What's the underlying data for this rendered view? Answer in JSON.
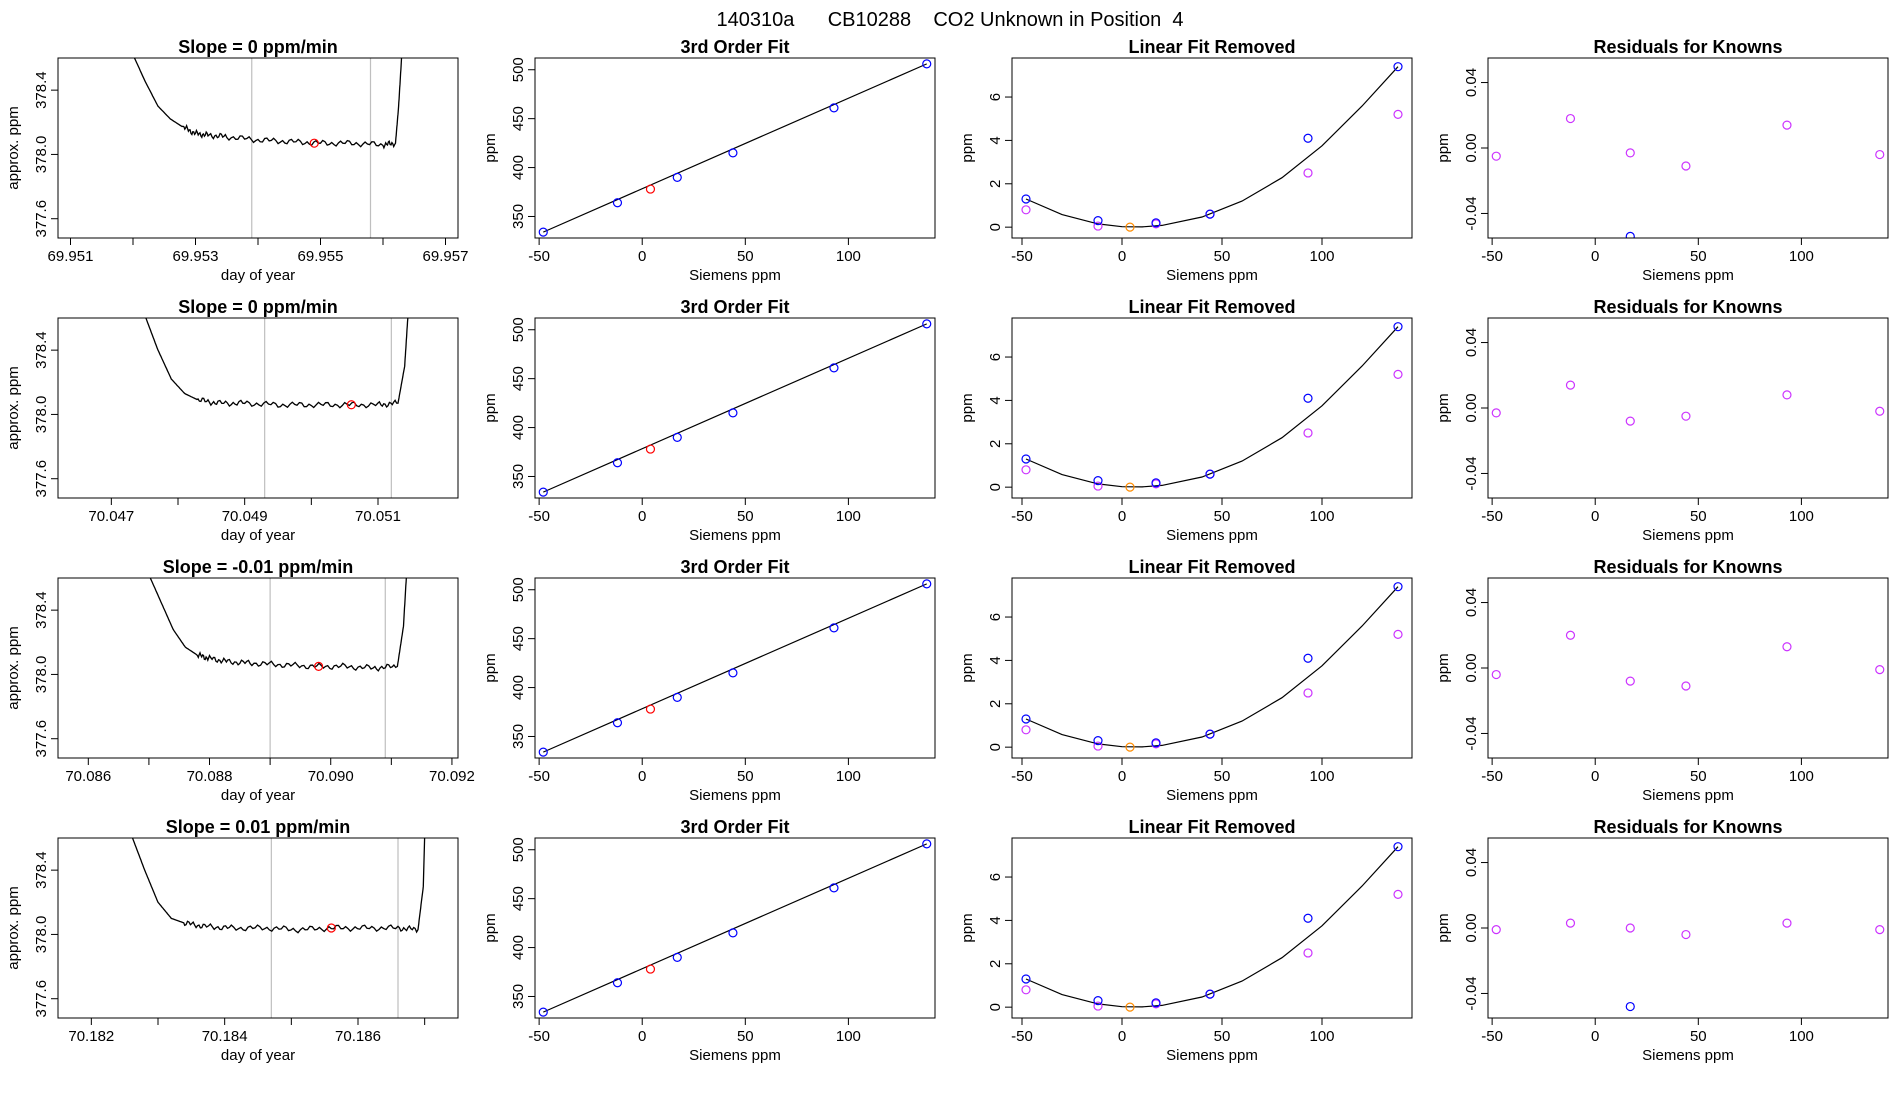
{
  "title": "140310a      CB10288    CO2 Unknown in Position  4",
  "colors": {
    "trace": "#000000",
    "unknown_point": "#ff0000",
    "known_point": "#0000ff",
    "raw_point": "#cc33ff",
    "zero_point": "#ff8c00",
    "window_line": "#bfbfbf",
    "fit_line": "#000000"
  },
  "chart_data": [
    {
      "type": "line",
      "panel": "trace",
      "row": 0,
      "title": "Slope =  0  ppm/min",
      "xlabel": "day of year",
      "ylabel": "approx. ppm",
      "xlim": [
        69.9508,
        69.9572
      ],
      "ylim": [
        377.48,
        378.6
      ],
      "xticks": [
        "69.951",
        "69.953",
        "69.955",
        "69.957"
      ],
      "xtick_minor": [
        69.951,
        69.952,
        69.953,
        69.954,
        69.955,
        69.956,
        69.957
      ],
      "yticks": [
        "377.6",
        "378.0",
        "378.4"
      ],
      "series": [
        {
          "x": [
            69.952,
            69.9522,
            69.9524,
            69.9526,
            69.9528,
            69.953,
            69.9532,
            69.9535,
            69.954,
            69.9545,
            69.955,
            69.9555,
            69.956,
            69.9562,
            69.95625,
            69.9563
          ],
          "y": [
            378.62,
            378.45,
            378.3,
            378.22,
            378.17,
            378.13,
            378.12,
            378.11,
            378.09,
            378.08,
            378.07,
            378.07,
            378.06,
            378.07,
            378.3,
            378.62
          ]
        }
      ],
      "window": [
        69.9539,
        69.9558
      ],
      "unknown": {
        "x": 69.9549,
        "y": 378.07
      }
    },
    {
      "type": "scatter",
      "panel": "fit",
      "row": 0,
      "title": "3rd Order Fit",
      "xlabel": "Siemens ppm",
      "ylabel": "ppm",
      "xlim": [
        -52,
        142
      ],
      "ylim": [
        328,
        512
      ],
      "xticks": [
        -50,
        0,
        50,
        100
      ],
      "yticks": [
        350,
        400,
        450,
        500
      ],
      "knowns": {
        "x": [
          -48,
          -12,
          17,
          44,
          93,
          138
        ],
        "y": [
          334,
          364,
          390,
          415,
          461,
          506
        ]
      },
      "unknown": {
        "x": 4,
        "y": 378
      },
      "line": {
        "x": [
          -48,
          138
        ],
        "y": [
          334,
          506
        ]
      }
    },
    {
      "type": "scatter",
      "panel": "linear_removed",
      "row": 0,
      "title": "Linear Fit Removed",
      "xlabel": "Siemens ppm",
      "ylabel": "ppm",
      "xlim": [
        -55,
        145
      ],
      "ylim": [
        -0.5,
        7.8
      ],
      "xticks": [
        -50,
        0,
        50,
        100
      ],
      "yticks": [
        0,
        2,
        4,
        6
      ],
      "knowns": {
        "x": [
          -48,
          -12,
          17,
          44,
          93,
          138
        ],
        "y": [
          1.3,
          0.3,
          0.2,
          0.6,
          4.1,
          7.4
        ]
      },
      "raw": {
        "x": [
          -48,
          -12,
          17,
          44,
          93,
          138
        ],
        "y": [
          0.8,
          0.05,
          0.15,
          0.6,
          2.5,
          5.2
        ]
      },
      "zero": {
        "x": 4,
        "y": 0
      },
      "fit_curve": {
        "x": [
          -48,
          -30,
          -12,
          0,
          10,
          20,
          40,
          60,
          80,
          100,
          120,
          138
        ],
        "y": [
          1.3,
          0.58,
          0.15,
          0.02,
          0.01,
          0.08,
          0.47,
          1.2,
          2.28,
          3.75,
          5.58,
          7.4
        ]
      }
    },
    {
      "type": "scatter",
      "panel": "residuals",
      "row": 0,
      "title": "Residuals for Knowns",
      "xlabel": "Siemens ppm",
      "ylabel": "ppm",
      "xlim": [
        -52,
        142
      ],
      "ylim": [
        -0.055,
        0.055
      ],
      "xticks": [
        -50,
        0,
        50,
        100
      ],
      "yticks": [
        "-0.04",
        "0.00",
        "0.04"
      ],
      "points": {
        "x": [
          -48,
          -12,
          17,
          44,
          93,
          138
        ],
        "y": [
          -0.005,
          0.018,
          -0.003,
          -0.011,
          0.014,
          -0.004
        ]
      },
      "outlier": {
        "x": 17,
        "y": -0.054
      }
    },
    {
      "type": "line",
      "panel": "trace",
      "row": 1,
      "title": "Slope =  0  ppm/min",
      "xlabel": "day of year",
      "ylabel": "approx. ppm",
      "xlim": [
        70.0462,
        70.0522
      ],
      "ylim": [
        377.48,
        378.6
      ],
      "xticks": [
        "70.047",
        "70.049",
        "70.051"
      ],
      "xtick_minor": [
        70.047,
        70.048,
        70.049,
        70.05,
        70.051
      ],
      "yticks": [
        "377.6",
        "378.0",
        "378.4"
      ],
      "series": [
        {
          "x": [
            70.0475,
            70.0477,
            70.0479,
            70.0481,
            70.0483,
            70.0486,
            70.049,
            70.0495,
            70.05,
            70.0505,
            70.051,
            70.0513,
            70.0514,
            70.05145
          ],
          "y": [
            378.62,
            378.4,
            378.22,
            378.13,
            378.09,
            378.07,
            378.07,
            378.06,
            378.06,
            378.06,
            378.06,
            378.07,
            378.3,
            378.62
          ]
        }
      ],
      "window": [
        70.0493,
        70.0512
      ],
      "unknown": {
        "x": 70.0506,
        "y": 378.06
      }
    },
    {
      "type": "scatter",
      "panel": "fit",
      "row": 1,
      "title": "3rd Order Fit",
      "xlabel": "Siemens ppm",
      "ylabel": "ppm",
      "xlim": [
        -52,
        142
      ],
      "ylim": [
        328,
        512
      ],
      "xticks": [
        -50,
        0,
        50,
        100
      ],
      "yticks": [
        350,
        400,
        450,
        500
      ],
      "knowns": {
        "x": [
          -48,
          -12,
          17,
          44,
          93,
          138
        ],
        "y": [
          334,
          364,
          390,
          415,
          461,
          506
        ]
      },
      "unknown": {
        "x": 4,
        "y": 378
      },
      "line": {
        "x": [
          -48,
          138
        ],
        "y": [
          334,
          506
        ]
      }
    },
    {
      "type": "scatter",
      "panel": "linear_removed",
      "row": 1,
      "title": "Linear Fit Removed",
      "xlabel": "Siemens ppm",
      "ylabel": "ppm",
      "xlim": [
        -55,
        145
      ],
      "ylim": [
        -0.5,
        7.8
      ],
      "xticks": [
        -50,
        0,
        50,
        100
      ],
      "yticks": [
        0,
        2,
        4,
        6
      ],
      "knowns": {
        "x": [
          -48,
          -12,
          17,
          44,
          93,
          138
        ],
        "y": [
          1.3,
          0.3,
          0.2,
          0.6,
          4.1,
          7.4
        ]
      },
      "raw": {
        "x": [
          -48,
          -12,
          17,
          44,
          93,
          138
        ],
        "y": [
          0.8,
          0.05,
          0.15,
          0.6,
          2.5,
          5.2
        ]
      },
      "zero": {
        "x": 4,
        "y": 0
      },
      "fit_curve": {
        "x": [
          -48,
          -30,
          -12,
          0,
          10,
          20,
          40,
          60,
          80,
          100,
          120,
          138
        ],
        "y": [
          1.3,
          0.58,
          0.15,
          0.02,
          0.01,
          0.08,
          0.47,
          1.2,
          2.28,
          3.75,
          5.58,
          7.4
        ]
      }
    },
    {
      "type": "scatter",
      "panel": "residuals",
      "row": 1,
      "title": "Residuals for Knowns",
      "xlabel": "Siemens ppm",
      "ylabel": "ppm",
      "xlim": [
        -52,
        142
      ],
      "ylim": [
        -0.055,
        0.055
      ],
      "xticks": [
        -50,
        0,
        50,
        100
      ],
      "yticks": [
        "-0.04",
        "0.00",
        "0.04"
      ],
      "points": {
        "x": [
          -48,
          -12,
          17,
          44,
          93,
          138
        ],
        "y": [
          -0.003,
          0.014,
          -0.008,
          -0.005,
          0.008,
          -0.002
        ]
      }
    },
    {
      "type": "line",
      "panel": "trace",
      "row": 2,
      "title": "Slope =  -0.01  ppm/min",
      "xlabel": "day of year",
      "ylabel": "approx. ppm",
      "xlim": [
        70.0855,
        70.0921
      ],
      "ylim": [
        377.48,
        378.6
      ],
      "xticks": [
        "70.086",
        "70.088",
        "70.090",
        "70.092"
      ],
      "xtick_minor": [
        70.086,
        70.087,
        70.088,
        70.089,
        70.09,
        70.091,
        70.092
      ],
      "yticks": [
        "377.6",
        "378.0",
        "378.4"
      ],
      "series": [
        {
          "x": [
            70.087,
            70.0872,
            70.0874,
            70.0876,
            70.0878,
            70.088,
            70.0883,
            70.0887,
            70.0892,
            70.0897,
            70.0902,
            70.0907,
            70.0911,
            70.0912,
            70.09125
          ],
          "y": [
            378.62,
            378.45,
            378.28,
            378.17,
            378.12,
            378.1,
            378.08,
            378.07,
            378.06,
            378.05,
            378.05,
            378.04,
            378.05,
            378.3,
            378.62
          ]
        }
      ],
      "window": [
        70.089,
        70.0909
      ],
      "unknown": {
        "x": 70.0898,
        "y": 378.05
      }
    },
    {
      "type": "scatter",
      "panel": "fit",
      "row": 2,
      "title": "3rd Order Fit",
      "xlabel": "Siemens ppm",
      "ylabel": "ppm",
      "xlim": [
        -52,
        142
      ],
      "ylim": [
        328,
        512
      ],
      "xticks": [
        -50,
        0,
        50,
        100
      ],
      "yticks": [
        350,
        400,
        450,
        500
      ],
      "knowns": {
        "x": [
          -48,
          -12,
          17,
          44,
          93,
          138
        ],
        "y": [
          334,
          364,
          390,
          415,
          461,
          506
        ]
      },
      "unknown": {
        "x": 4,
        "y": 378
      },
      "line": {
        "x": [
          -48,
          138
        ],
        "y": [
          334,
          506
        ]
      }
    },
    {
      "type": "scatter",
      "panel": "linear_removed",
      "row": 2,
      "title": "Linear Fit Removed",
      "xlabel": "Siemens ppm",
      "ylabel": "ppm",
      "xlim": [
        -55,
        145
      ],
      "ylim": [
        -0.5,
        7.8
      ],
      "xticks": [
        -50,
        0,
        50,
        100
      ],
      "yticks": [
        0,
        2,
        4,
        6
      ],
      "knowns": {
        "x": [
          -48,
          -12,
          17,
          44,
          93,
          138
        ],
        "y": [
          1.3,
          0.3,
          0.2,
          0.6,
          4.1,
          7.4
        ]
      },
      "raw": {
        "x": [
          -48,
          -12,
          17,
          44,
          93,
          138
        ],
        "y": [
          0.8,
          0.05,
          0.15,
          0.6,
          2.5,
          5.2
        ]
      },
      "zero": {
        "x": 4,
        "y": 0
      },
      "fit_curve": {
        "x": [
          -48,
          -30,
          -12,
          0,
          10,
          20,
          40,
          60,
          80,
          100,
          120,
          138
        ],
        "y": [
          1.3,
          0.58,
          0.15,
          0.02,
          0.01,
          0.08,
          0.47,
          1.2,
          2.28,
          3.75,
          5.58,
          7.4
        ]
      }
    },
    {
      "type": "scatter",
      "panel": "residuals",
      "row": 2,
      "title": "Residuals for Knowns",
      "xlabel": "Siemens ppm",
      "ylabel": "ppm",
      "xlim": [
        -52,
        142
      ],
      "ylim": [
        -0.055,
        0.055
      ],
      "xticks": [
        -50,
        0,
        50,
        100
      ],
      "yticks": [
        "-0.04",
        "0.00",
        "0.04"
      ],
      "points": {
        "x": [
          -48,
          -12,
          17,
          44,
          93,
          138
        ],
        "y": [
          -0.004,
          0.02,
          -0.008,
          -0.011,
          0.013,
          -0.001
        ]
      }
    },
    {
      "type": "line",
      "panel": "trace",
      "row": 3,
      "title": "Slope =  0.01  ppm/min",
      "xlabel": "day of year",
      "ylabel": "approx. ppm",
      "xlim": [
        70.1815,
        70.1875
      ],
      "ylim": [
        377.48,
        378.6
      ],
      "xticks": [
        "70.182",
        "70.184",
        "70.186"
      ],
      "xtick_minor": [
        70.182,
        70.183,
        70.184,
        70.185,
        70.186,
        70.187
      ],
      "yticks": [
        "377.6",
        "378.0",
        "378.4"
      ],
      "series": [
        {
          "x": [
            70.1826,
            70.1828,
            70.183,
            70.1832,
            70.1834,
            70.1837,
            70.1841,
            70.1846,
            70.1851,
            70.1856,
            70.1861,
            70.1866,
            70.1869,
            70.18698,
            70.187
          ],
          "y": [
            378.62,
            378.4,
            378.2,
            378.1,
            378.07,
            378.05,
            378.04,
            378.04,
            378.03,
            378.04,
            378.04,
            378.04,
            378.03,
            378.3,
            378.62
          ]
        }
      ],
      "window": [
        70.1847,
        70.1866
      ],
      "unknown": {
        "x": 70.1856,
        "y": 378.04
      }
    },
    {
      "type": "scatter",
      "panel": "fit",
      "row": 3,
      "title": "3rd Order Fit",
      "xlabel": "Siemens ppm",
      "ylabel": "ppm",
      "xlim": [
        -52,
        142
      ],
      "ylim": [
        328,
        512
      ],
      "xticks": [
        -50,
        0,
        50,
        100
      ],
      "yticks": [
        350,
        400,
        450,
        500
      ],
      "knowns": {
        "x": [
          -48,
          -12,
          17,
          44,
          93,
          138
        ],
        "y": [
          334,
          364,
          390,
          415,
          461,
          506
        ]
      },
      "unknown": {
        "x": 4,
        "y": 378
      },
      "line": {
        "x": [
          -48,
          138
        ],
        "y": [
          334,
          506
        ]
      }
    },
    {
      "type": "scatter",
      "panel": "linear_removed",
      "row": 3,
      "title": "Linear Fit Removed",
      "xlabel": "Siemens ppm",
      "ylabel": "ppm",
      "xlim": [
        -55,
        145
      ],
      "ylim": [
        -0.5,
        7.8
      ],
      "xticks": [
        -50,
        0,
        50,
        100
      ],
      "yticks": [
        0,
        2,
        4,
        6
      ],
      "knowns": {
        "x": [
          -48,
          -12,
          17,
          44,
          93,
          138
        ],
        "y": [
          1.3,
          0.3,
          0.2,
          0.6,
          4.1,
          7.4
        ]
      },
      "raw": {
        "x": [
          -48,
          -12,
          17,
          44,
          93,
          138
        ],
        "y": [
          0.8,
          0.05,
          0.15,
          0.6,
          2.5,
          5.2
        ]
      },
      "zero": {
        "x": 4,
        "y": 0
      },
      "fit_curve": {
        "x": [
          -48,
          -30,
          -12,
          0,
          10,
          20,
          40,
          60,
          80,
          100,
          120,
          138
        ],
        "y": [
          1.3,
          0.58,
          0.15,
          0.02,
          0.01,
          0.08,
          0.47,
          1.2,
          2.28,
          3.75,
          5.58,
          7.4
        ]
      }
    },
    {
      "type": "scatter",
      "panel": "residuals",
      "row": 3,
      "title": "Residuals for Knowns",
      "xlabel": "Siemens ppm",
      "ylabel": "ppm",
      "xlim": [
        -52,
        142
      ],
      "ylim": [
        -0.055,
        0.055
      ],
      "xticks": [
        -50,
        0,
        50,
        100
      ],
      "yticks": [
        "-0.04",
        "0.00",
        "0.04"
      ],
      "points": {
        "x": [
          -48,
          -12,
          17,
          44,
          93,
          138
        ],
        "y": [
          -0.001,
          0.003,
          0.0,
          -0.004,
          0.003,
          -0.001
        ]
      },
      "outlier": {
        "x": 17,
        "y": -0.048
      }
    }
  ]
}
